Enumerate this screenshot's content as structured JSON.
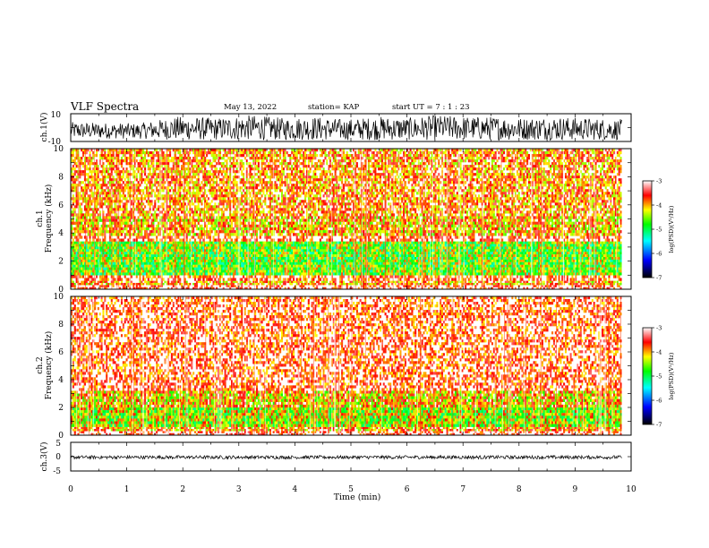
{
  "header": {
    "title": "VLF Spectra",
    "date": "May 13, 2022",
    "station": "station= KAP",
    "start": "start  UT =   7 : 1  : 23"
  },
  "chart_data": [
    {
      "id": "ch1-waveform",
      "type": "line",
      "ylabel": "ch.1(V)",
      "ylim": [
        -10,
        10
      ],
      "yticks": [
        "10",
        "-10"
      ],
      "xlim": [
        0,
        10
      ],
      "data_end_min": 9.83,
      "envelope": {
        "x": [
          0,
          1.2,
          1.9,
          2.6,
          3.2,
          3.8,
          4.3,
          4.9,
          5.5,
          6.0,
          6.5,
          7.1,
          7.6,
          8.1,
          8.6,
          9.2,
          9.83
        ],
        "max": [
          4,
          3,
          8,
          7,
          9,
          7,
          8,
          6,
          8,
          7,
          9,
          8,
          8,
          7,
          8,
          7,
          6
        ],
        "min": [
          -8,
          -8,
          -9,
          -9,
          -9,
          -9,
          -9,
          -9,
          -9,
          -9,
          -9,
          -9,
          -9,
          -9,
          -9,
          -9,
          -9
        ]
      },
      "color": "#000000"
    },
    {
      "id": "ch1-spectrogram",
      "type": "heatmap",
      "ylabel": "ch.1\nFrequency  (kHz)",
      "ylim": [
        0,
        10
      ],
      "yticks": [
        "0",
        "2",
        "4",
        "6",
        "8",
        "10"
      ],
      "xlim": [
        0,
        10
      ],
      "data_end_min": 9.83,
      "bands": [
        {
          "f": [
            0,
            0.3
          ],
          "level": -3.2
        },
        {
          "f": [
            0.3,
            0.6
          ],
          "level": -3.8
        },
        {
          "f": [
            0.6,
            1.0
          ],
          "level": -3.4
        },
        {
          "f": [
            1.0,
            3.4
          ],
          "level": -4.6
        },
        {
          "f": [
            3.4,
            3.8
          ],
          "level": -3.3
        },
        {
          "f": [
            3.8,
            5.2
          ],
          "level": -3.9
        },
        {
          "f": [
            5.2,
            10
          ],
          "level": -3.7
        }
      ],
      "colorbar": {
        "label": "log(PSD)(V²/Hz)",
        "ticks": [
          "-3",
          "-4",
          "-5",
          "-6",
          "-7"
        ],
        "range": [
          -7,
          -3
        ]
      }
    },
    {
      "id": "ch2-spectrogram",
      "type": "heatmap",
      "ylabel": "ch.2\nFrequency  (kHz)",
      "ylim": [
        0,
        10
      ],
      "yticks": [
        "0",
        "2",
        "4",
        "6",
        "8",
        "10"
      ],
      "xlim": [
        0,
        10
      ],
      "data_end_min": 9.83,
      "bands": [
        {
          "f": [
            0,
            0.3
          ],
          "level": -3.2
        },
        {
          "f": [
            0.3,
            0.6
          ],
          "level": -3.8
        },
        {
          "f": [
            0.6,
            2.0
          ],
          "level": -4.4
        },
        {
          "f": [
            2.0,
            3.2
          ],
          "level": -4.0
        },
        {
          "f": [
            3.2,
            10
          ],
          "level": -3.4
        }
      ],
      "colorbar": {
        "label": "log(PSD)(V²/Hz)",
        "ticks": [
          "-3",
          "-4",
          "-5",
          "-6",
          "-7"
        ],
        "range": [
          -7,
          -3
        ]
      }
    },
    {
      "id": "ch3-waveform",
      "type": "line",
      "ylabel": "ch.3(V)",
      "ylim": [
        -5,
        5
      ],
      "yticks": [
        "5",
        "0",
        "-5"
      ],
      "xlim": [
        0,
        10
      ],
      "data_end_min": 9.83,
      "envelope": {
        "x": [
          0,
          9.83
        ],
        "max": [
          0.4,
          0.4
        ],
        "min": [
          -0.8,
          -0.8
        ]
      },
      "xlabel": "Time  (min)",
      "xticks": [
        "0",
        "1",
        "2",
        "3",
        "4",
        "5",
        "6",
        "7",
        "8",
        "9",
        "10"
      ],
      "color": "#000000"
    }
  ],
  "colormap": [
    "#000000",
    "#0000ff",
    "#00ffff",
    "#00ff00",
    "#ffff00",
    "#ff0000",
    "#ffffff"
  ]
}
